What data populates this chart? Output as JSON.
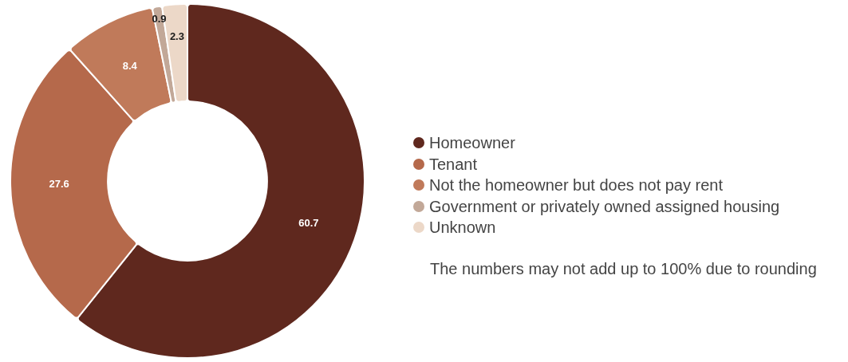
{
  "chart_data": {
    "type": "donut",
    "categories": [
      "Homeowner",
      "Tenant",
      "Not the homeowner but does not pay rent",
      "Government or privately owned assigned housing",
      "Unknown"
    ],
    "values": [
      60.7,
      27.6,
      8.4,
      0.9,
      2.3
    ],
    "colors": [
      "#5f281e",
      "#b5694b",
      "#c07a5a",
      "#c2a898",
      "#ecd8c8"
    ],
    "data_labels": true,
    "legend": "right",
    "annotations": [
      "The numbers may not add up to 100% due to rounding"
    ]
  }
}
